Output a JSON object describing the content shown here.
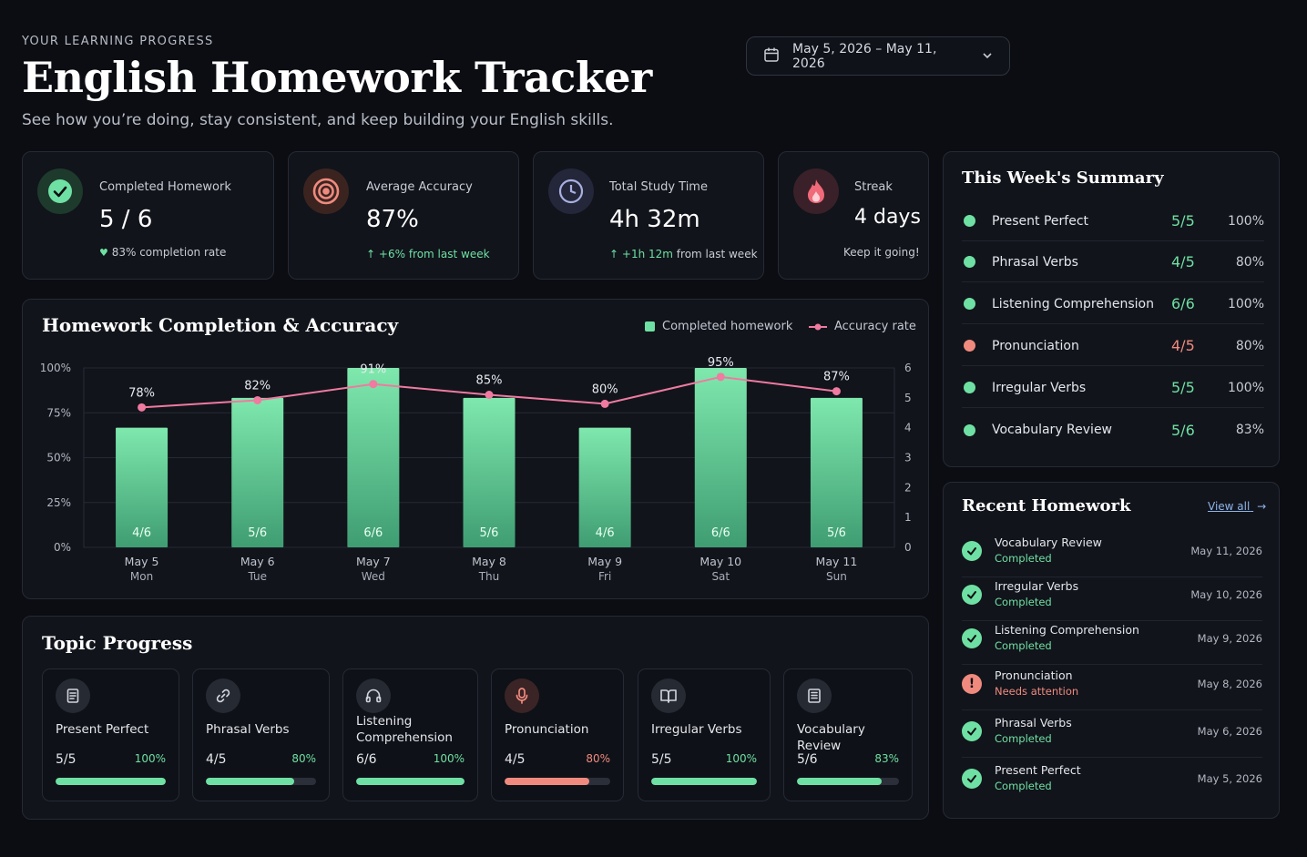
{
  "header": {
    "eyebrow": "YOUR LEARNING PROGRESS",
    "title": "English Homework Tracker",
    "subtitle": "See how you’re doing, stay consistent, and keep building your English skills.",
    "date_range": "May 5, 2026 – May 11, 2026"
  },
  "stats": {
    "completed": {
      "label": "Completed Homework",
      "value": "5 / 6",
      "note": "83% completion rate",
      "icon": "check-icon"
    },
    "accuracy": {
      "label": "Average Accuracy",
      "value": "87%",
      "note_strong": "+6%",
      "note": "from last week",
      "icon": "target-icon"
    },
    "time": {
      "label": "Total Study Time",
      "value": "4h 32m",
      "note_strong": "+1h 12m",
      "note": "from last week",
      "icon": "clock-icon"
    },
    "streak": {
      "label": "Streak",
      "value": "4 days",
      "note": "Keep it going!",
      "icon": "flame-icon"
    }
  },
  "chart_panel": {
    "title": "Homework Completion & Accuracy",
    "legend_bars": "Completed homework",
    "legend_line": "Accuracy rate"
  },
  "chart_data": {
    "type": "bar",
    "categories": [
      "May 5",
      "May 6",
      "May 7",
      "May 8",
      "May 9",
      "May 10",
      "May 11"
    ],
    "days": [
      "Mon",
      "Tue",
      "Wed",
      "Thu",
      "Fri",
      "Sat",
      "Sun"
    ],
    "series": [
      {
        "name": "Completed homework",
        "type": "bar",
        "axis": "right",
        "values": [
          4,
          5,
          6,
          5,
          4,
          6,
          5
        ],
        "labels": [
          "4/6",
          "5/6",
          "6/6",
          "5/6",
          "4/6",
          "6/6",
          "5/6"
        ],
        "color": "#6fe0a3"
      },
      {
        "name": "Accuracy rate",
        "type": "line",
        "axis": "left",
        "values": [
          78,
          82,
          91,
          85,
          80,
          95,
          87
        ],
        "labels": [
          "78%",
          "82%",
          "91%",
          "85%",
          "80%",
          "95%",
          "87%"
        ],
        "color": "#f07aa0"
      }
    ],
    "left_ticks": [
      "0%",
      "25%",
      "50%",
      "75%",
      "100%"
    ],
    "right_ticks": [
      "0",
      "1",
      "2",
      "3",
      "4",
      "5",
      "6"
    ],
    "ylim_left": [
      0,
      100
    ],
    "ylim_right": [
      0,
      6
    ],
    "grid": true,
    "legend": "top-right"
  },
  "summary": {
    "title": "This Week's Summary",
    "items": [
      {
        "name": "Present Perfect",
        "frac": "5/5",
        "pct": "100%",
        "color": "#6fe0a3"
      },
      {
        "name": "Phrasal Verbs",
        "frac": "4/5",
        "pct": "80%",
        "color": "#6fe0a3"
      },
      {
        "name": "Listening Comprehension",
        "frac": "6/6",
        "pct": "100%",
        "color": "#6fe0a3"
      },
      {
        "name": "Pronunciation",
        "frac": "4/5",
        "pct": "80%",
        "color": "#f08a7e"
      },
      {
        "name": "Irregular Verbs",
        "frac": "5/5",
        "pct": "100%",
        "color": "#6fe0a3"
      },
      {
        "name": "Vocabulary Review",
        "frac": "5/6",
        "pct": "83%",
        "color": "#6fe0a3"
      }
    ]
  },
  "recent": {
    "title": "Recent Homework",
    "view_all": "View all",
    "items": [
      {
        "name": "Vocabulary Review",
        "status": "Completed",
        "date": "May 11, 2026",
        "ok": true
      },
      {
        "name": "Irregular Verbs",
        "status": "Completed",
        "date": "May 10, 2026",
        "ok": true
      },
      {
        "name": "Listening Comprehension",
        "status": "Completed",
        "date": "May 9, 2026",
        "ok": true
      },
      {
        "name": "Pronunciation",
        "status": "Needs attention",
        "date": "May 8, 2026",
        "ok": false
      },
      {
        "name": "Phrasal Verbs",
        "status": "Completed",
        "date": "May 6, 2026",
        "ok": true
      },
      {
        "name": "Present Perfect",
        "status": "Completed",
        "date": "May 5, 2026",
        "ok": true
      }
    ]
  },
  "topics": {
    "title": "Topic Progress",
    "items": [
      {
        "name": "Present Perfect",
        "frac": "5/5",
        "pct": "100%",
        "progress": 1.0,
        "icon": "document-icon",
        "color": "#6fe0a3"
      },
      {
        "name": "Phrasal Verbs",
        "frac": "4/5",
        "pct": "80%",
        "progress": 0.8,
        "icon": "link-icon",
        "color": "#6fe0a3"
      },
      {
        "name": "Listening Comprehension",
        "frac": "6/6",
        "pct": "100%",
        "progress": 1.0,
        "icon": "headphones-icon",
        "color": "#6fe0a3"
      },
      {
        "name": "Pronunciation",
        "frac": "4/5",
        "pct": "80%",
        "progress": 0.8,
        "icon": "microphone-icon",
        "color": "#f08a7e"
      },
      {
        "name": "Irregular Verbs",
        "frac": "5/5",
        "pct": "100%",
        "progress": 1.0,
        "icon": "book-icon",
        "color": "#6fe0a3"
      },
      {
        "name": "Vocabulary Review",
        "frac": "5/6",
        "pct": "83%",
        "progress": 0.83,
        "icon": "notes-icon",
        "color": "#6fe0a3"
      }
    ]
  }
}
